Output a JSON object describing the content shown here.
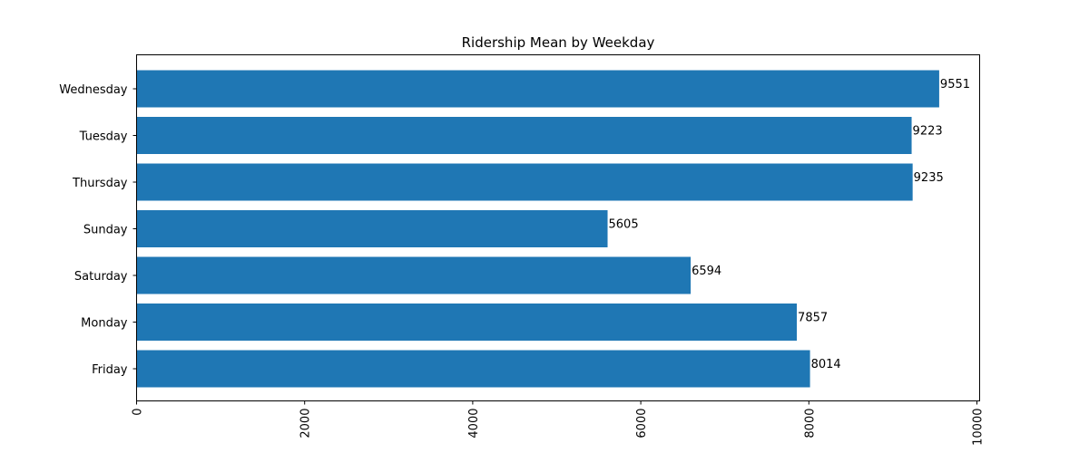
{
  "chart_data": {
    "type": "bar",
    "orientation": "horizontal",
    "title": "Ridership Mean by Weekday",
    "xlabel": "",
    "ylabel": "",
    "categories": [
      "Wednesday",
      "Tuesday",
      "Thursday",
      "Sunday",
      "Saturday",
      "Monday",
      "Friday"
    ],
    "values": [
      9551,
      9223,
      9235,
      5605,
      6594,
      7857,
      8014
    ],
    "xlim": [
      0,
      10000
    ],
    "xticks": [
      0,
      2000,
      4000,
      6000,
      8000,
      10000
    ],
    "xtick_rotation": "vertical",
    "data_labels": true,
    "grid": false,
    "legend": "none",
    "bar_color": "#1f77b4"
  }
}
